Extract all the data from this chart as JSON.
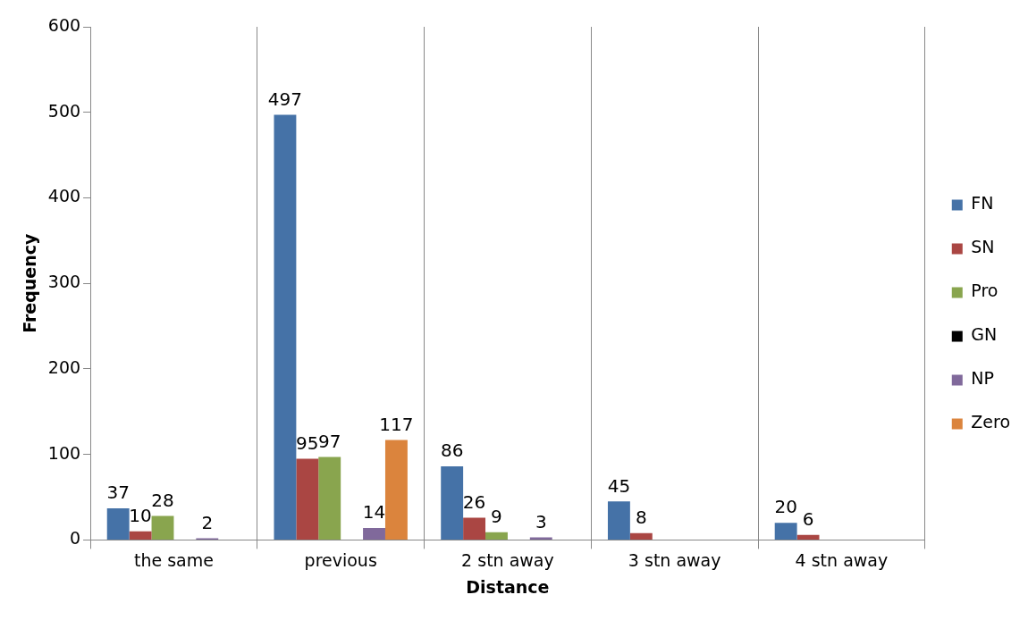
{
  "chart_data": {
    "type": "bar",
    "xlabel": "Distance",
    "ylabel": "Frequency",
    "categories": [
      "the same",
      "previous",
      "2 stn away",
      "3 stn away",
      "4 stn away"
    ],
    "series": [
      {
        "name": "FN",
        "color": "#4572a7",
        "values": [
          37,
          497,
          86,
          45,
          20
        ]
      },
      {
        "name": "SN",
        "color": "#aa4643",
        "values": [
          10,
          95,
          26,
          8,
          6
        ]
      },
      {
        "name": "Pro",
        "color": "#89a54e",
        "values": [
          28,
          97,
          9,
          null,
          null
        ]
      },
      {
        "name": "GN",
        "color": "#000000",
        "values": [
          null,
          null,
          null,
          null,
          null
        ]
      },
      {
        "name": "NP",
        "color": "#80699b",
        "values": [
          2,
          14,
          3,
          null,
          null
        ]
      },
      {
        "name": "Zero",
        "color": "#db843d",
        "values": [
          null,
          117,
          null,
          null,
          null
        ]
      }
    ],
    "ylim": [
      0,
      600
    ],
    "yticks": [
      0,
      100,
      200,
      300,
      400,
      500,
      600
    ],
    "grid": "x",
    "legend": "right",
    "data_labels": true
  }
}
